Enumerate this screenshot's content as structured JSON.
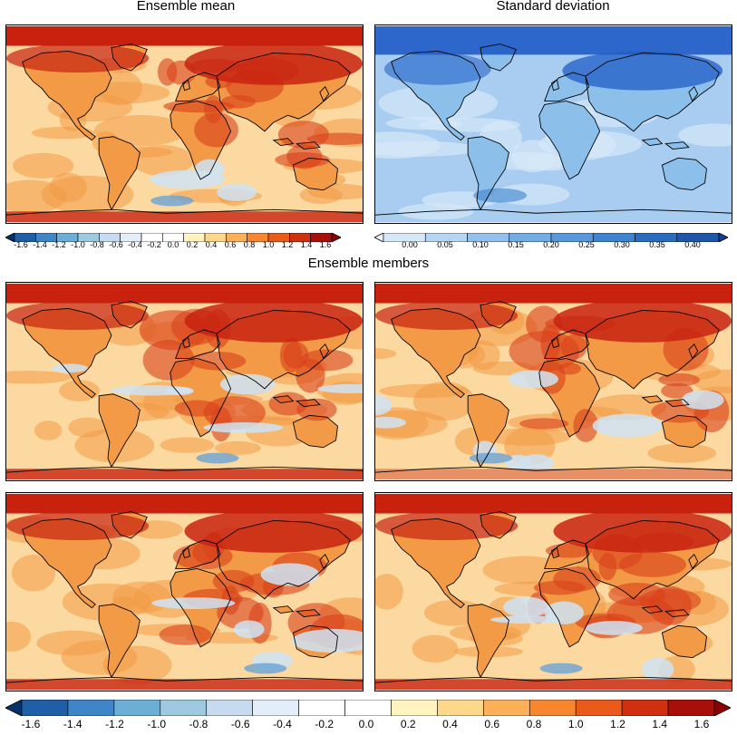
{
  "titles": {
    "ensemble_mean": "Ensemble mean",
    "standard_deviation": "Standard deviation",
    "ensemble_members": "Ensemble members"
  },
  "colorbars": {
    "anomaly_small": {
      "ticks": [
        "-1.6",
        "-1.4",
        "-1.2",
        "-1.0",
        "-0.8",
        "-0.6",
        "-0.4",
        "-0.2",
        "0.0",
        "0.2",
        "0.4",
        "0.6",
        "0.8",
        "1.0",
        "1.2",
        "1.4",
        "1.6"
      ],
      "colors": [
        "#08306b",
        "#1f5fa8",
        "#3f86c8",
        "#6baed6",
        "#9ecae1",
        "#c6dbef",
        "#e3eef8",
        "#ffffff",
        "#ffffff",
        "#fff3c0",
        "#fdd88a",
        "#fdb05a",
        "#f7862f",
        "#ea5a1b",
        "#d02f10",
        "#a60f0a",
        "#8b0000"
      ]
    },
    "std_dev": {
      "ticks": [
        "0.00",
        "0.05",
        "0.10",
        "0.15",
        "0.20",
        "0.25",
        "0.30",
        "0.35",
        "0.40"
      ],
      "colors": [
        "#f4f9ff",
        "#d6e8f8",
        "#b6d5f2",
        "#93c0ec",
        "#73ade6",
        "#5799dc",
        "#3d83cf",
        "#2a6cc0",
        "#1e56ad",
        "#143f96"
      ]
    },
    "anomaly_large": {
      "ticks": [
        "-1.6",
        "-1.4",
        "-1.2",
        "-1.0",
        "-0.8",
        "-0.6",
        "-0.4",
        "-0.2",
        "0.0",
        "0.2",
        "0.4",
        "0.6",
        "0.8",
        "1.0",
        "1.2",
        "1.4",
        "1.6"
      ],
      "colors": [
        "#08306b",
        "#1f5fa8",
        "#3f86c8",
        "#6baed6",
        "#9ecae1",
        "#c6dbef",
        "#e3eef8",
        "#ffffff",
        "#ffffff",
        "#fff3c0",
        "#fdd88a",
        "#fdb05a",
        "#f7862f",
        "#ea5a1b",
        "#d02f10",
        "#a60f0a",
        "#8b0000"
      ]
    }
  },
  "map_palettes": {
    "warm": {
      "ocean_base": "#fcd9a0",
      "arctic": "#c8220f",
      "land_hot": "#d9411a",
      "land_warm": "#f29a45",
      "cool_patch": "#cfe3f3",
      "cold_patch": "#6aa2d4",
      "coast": "#000000"
    },
    "std": {
      "ocean_base": "#a9cdf0",
      "arctic": "#1f5cc6",
      "land": "#8dbfeb",
      "low": "#d6e8f8",
      "coast": "#000000"
    }
  }
}
